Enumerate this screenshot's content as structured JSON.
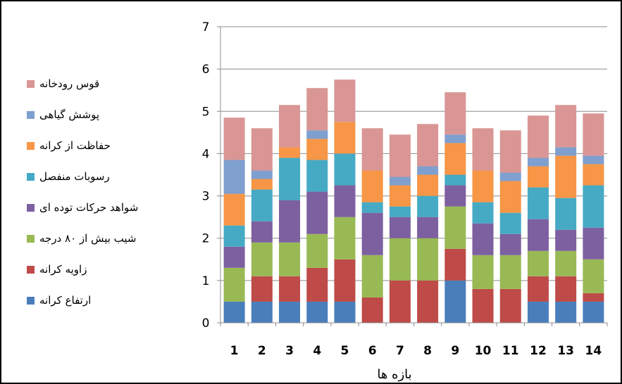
{
  "chart_data": {
    "type": "bar",
    "stacked": true,
    "title": "",
    "xlabel": "بازه ها",
    "ylabel": "",
    "ylim": [
      0,
      7
    ],
    "yticks": [
      0,
      1,
      2,
      3,
      4,
      5,
      6,
      7
    ],
    "grid": true,
    "legend_position": "left",
    "categories": [
      "1",
      "2",
      "3",
      "4",
      "5",
      "6",
      "7",
      "8",
      "9",
      "10",
      "11",
      "12",
      "13",
      "14"
    ],
    "series": [
      {
        "name": "ارتفاع کرانه",
        "color": "#4a7ebb",
        "values": [
          0.5,
          0.5,
          0.5,
          0.5,
          0.5,
          0,
          0,
          0,
          1,
          0,
          0,
          0.5,
          0.5,
          0.5
        ]
      },
      {
        "name": "زاویه کرانه",
        "color": "#be4b48",
        "values": [
          0,
          0.6,
          0.6,
          0.8,
          1,
          0.6,
          1,
          1,
          0.75,
          0.8,
          0.8,
          0.6,
          0.6,
          0.2
        ]
      },
      {
        "name": "شیب بیش از ۸۰ درجه",
        "color": "#98b954",
        "values": [
          0.8,
          0.8,
          0.8,
          0.8,
          1,
          1,
          1,
          1,
          1,
          0.8,
          0.8,
          0.6,
          0.6,
          0.8
        ]
      },
      {
        "name": "شواهد حرکات توده ای",
        "color": "#7d60a0",
        "values": [
          0.5,
          0.5,
          1,
          1,
          0.75,
          1,
          0.5,
          0.5,
          0.5,
          0.75,
          0.5,
          0.75,
          0.5,
          0.75
        ]
      },
      {
        "name": "رسوبات منفصل",
        "color": "#46aac5",
        "values": [
          0.5,
          0.75,
          1,
          0.75,
          0.75,
          0.25,
          0.25,
          0.5,
          0.25,
          0.5,
          0.5,
          0.75,
          0.75,
          1
        ]
      },
      {
        "name": "حفاظت از کرانه",
        "color": "#f79646",
        "values": [
          0.75,
          0.25,
          0.25,
          0.5,
          0.75,
          0.75,
          0.5,
          0.5,
          0.75,
          0.75,
          0.75,
          0.5,
          1,
          0.5
        ]
      },
      {
        "name": "پوشش گیاهی",
        "color": "#7f9fcf",
        "values": [
          0.8,
          0.2,
          0,
          0.2,
          0,
          0,
          0.2,
          0.2,
          0.2,
          0,
          0.2,
          0.2,
          0.2,
          0.2
        ]
      },
      {
        "name": "قوس رودخانه",
        "color": "#d99694",
        "values": [
          1,
          1,
          1,
          1,
          1,
          1,
          1,
          1,
          1,
          1,
          1,
          1,
          1,
          1
        ]
      }
    ]
  }
}
